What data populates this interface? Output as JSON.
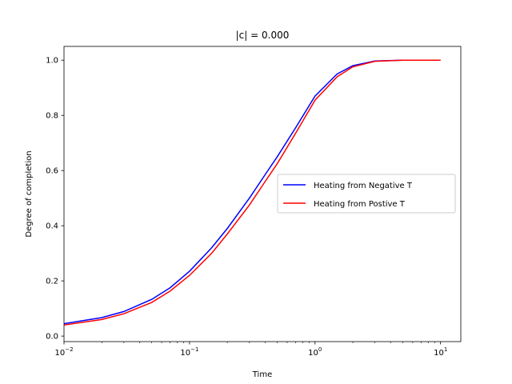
{
  "chart_data": {
    "type": "line",
    "title": "|c| = 0.000",
    "xlabel": "Time",
    "ylabel": "Degree of completion",
    "xscale": "log",
    "xlim": [
      0.01,
      14.5
    ],
    "ylim": [
      -0.02,
      1.05
    ],
    "xticks": [
      {
        "value": 0.01,
        "base": "10",
        "exp": "−2"
      },
      {
        "value": 0.1,
        "base": "10",
        "exp": "−1"
      },
      {
        "value": 1,
        "base": "10",
        "exp": "0"
      },
      {
        "value": 10,
        "base": "10",
        "exp": "1"
      }
    ],
    "yticks": [
      "0.0",
      "0.2",
      "0.4",
      "0.6",
      "0.8",
      "1.0"
    ],
    "grid": false,
    "legend_position": "center-right",
    "series": [
      {
        "name": "Heating from Negative T",
        "color": "#0000ff",
        "x": [
          0.01,
          0.02,
          0.03,
          0.05,
          0.07,
          0.1,
          0.15,
          0.2,
          0.3,
          0.4,
          0.5,
          0.7,
          1.0,
          1.5,
          2.0,
          3.0,
          5.0,
          10.0
        ],
        "y": [
          0.045,
          0.067,
          0.089,
          0.133,
          0.175,
          0.235,
          0.32,
          0.39,
          0.5,
          0.585,
          0.65,
          0.755,
          0.87,
          0.95,
          0.98,
          0.997,
          1.0,
          1.0
        ]
      },
      {
        "name": "Heating from Postive T",
        "color": "#ff0000",
        "x": [
          0.01,
          0.02,
          0.03,
          0.05,
          0.07,
          0.1,
          0.15,
          0.2,
          0.3,
          0.4,
          0.5,
          0.7,
          1.0,
          1.5,
          2.0,
          3.0,
          5.0,
          10.0
        ],
        "y": [
          0.04,
          0.06,
          0.081,
          0.122,
          0.163,
          0.22,
          0.3,
          0.37,
          0.475,
          0.56,
          0.625,
          0.735,
          0.855,
          0.94,
          0.976,
          0.996,
          1.0,
          1.0
        ]
      }
    ]
  }
}
